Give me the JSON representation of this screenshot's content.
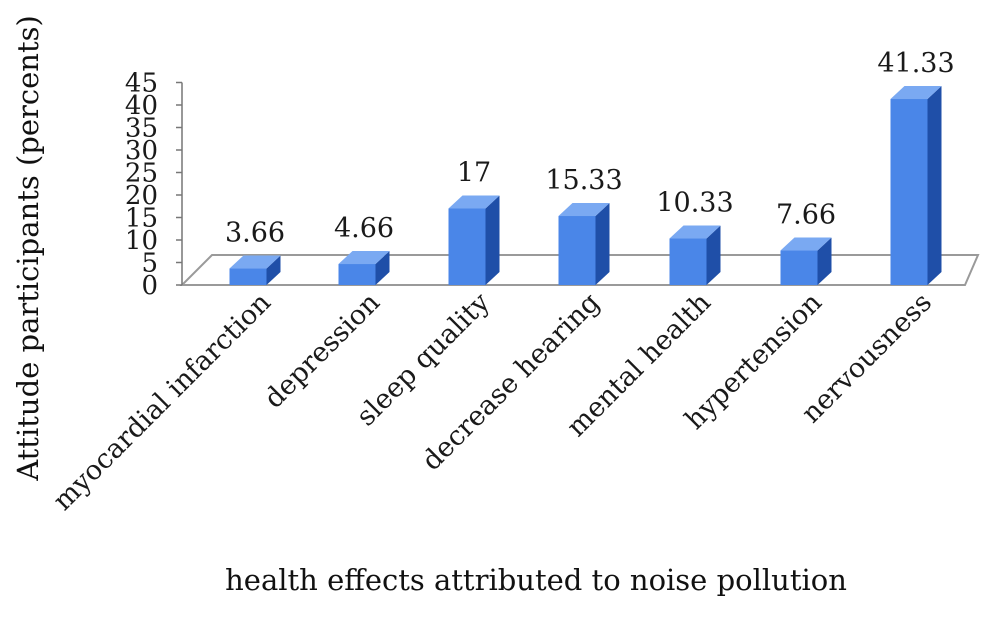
{
  "chart_data": {
    "type": "bar",
    "style": "3d-column",
    "xlabel": "health effects attributed to noise pollution",
    "ylabel": "Attitude participants (percents)",
    "ylim": [
      0,
      45
    ],
    "yticks": [
      0,
      5,
      10,
      15,
      20,
      25,
      30,
      35,
      40,
      45
    ],
    "categories": [
      "myocardial infarction",
      "depression",
      "sleep quality",
      "decrease hearing",
      "mental health",
      "hypertension",
      "nervousness"
    ],
    "values": [
      3.66,
      4.66,
      17,
      15.33,
      10.33,
      7.66,
      41.33
    ],
    "value_labels": [
      "3.66",
      "4.66",
      "17",
      "15.33",
      "10.33",
      "7.66",
      "41.33"
    ],
    "grid": false,
    "legend": "none",
    "colors": {
      "bar_front": "#4a86e8",
      "bar_side": "#1f4fa8",
      "bar_top": "#7aa9f2",
      "floor": "#9a9a9a"
    }
  }
}
